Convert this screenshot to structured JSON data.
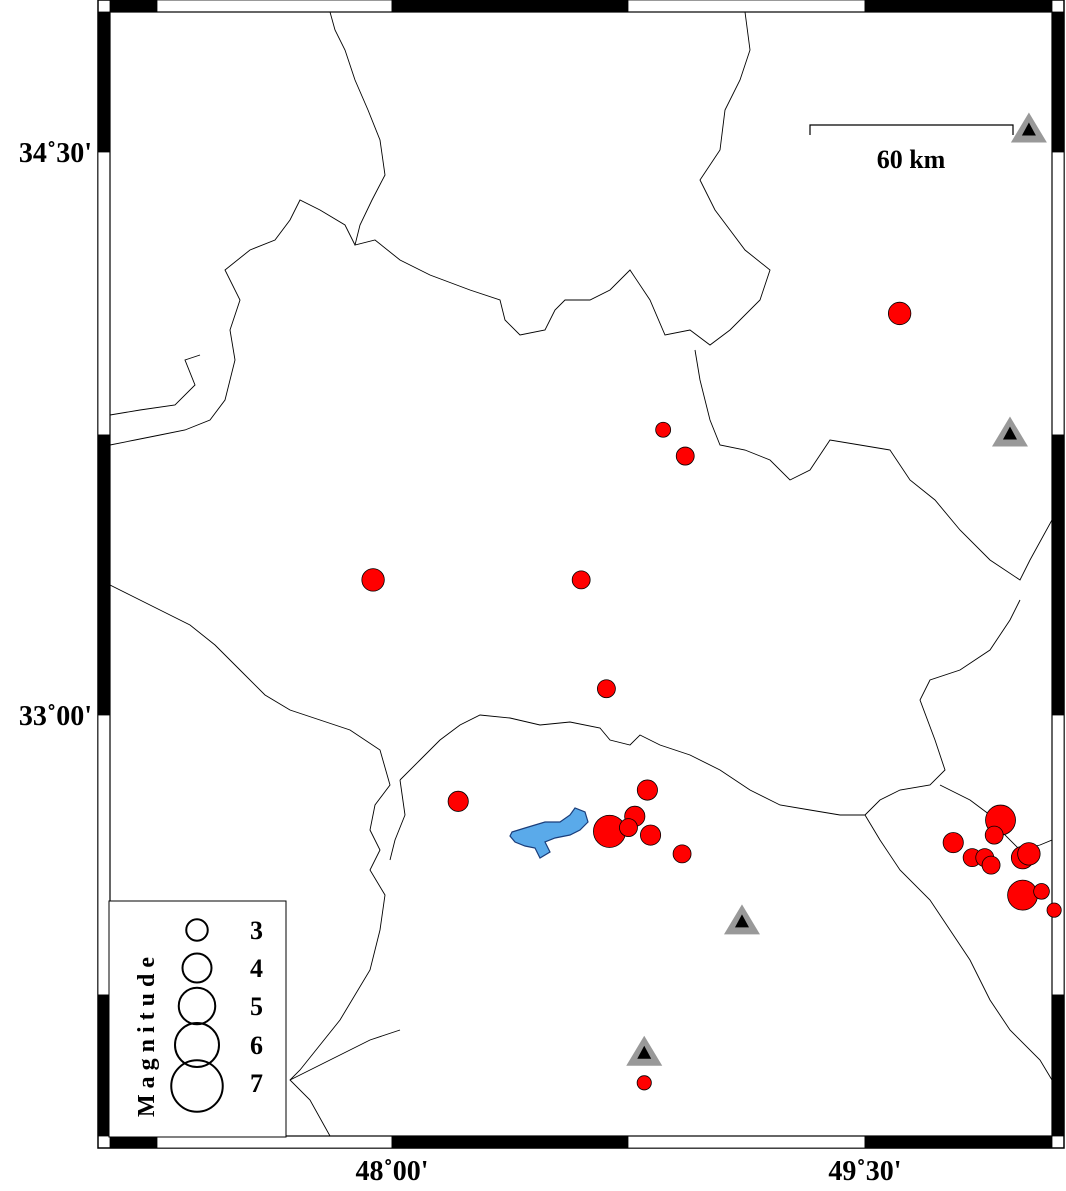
{
  "map": {
    "region": {
      "lon_min": 47.25,
      "lon_max": 50.0,
      "lat_min": 32.95,
      "lat_max": 34.85
    },
    "x_ticks": [
      {
        "lon": 48.0,
        "label": "48˚00'"
      },
      {
        "lon": 49.5,
        "label": "49˚30'"
      }
    ],
    "y_ticks": [
      {
        "lat": 34.5,
        "label": "34˚30'"
      },
      {
        "lat": 33.0,
        "label": "33˚00'"
      }
    ],
    "scale_bar": {
      "label": "60 km"
    },
    "colors": {
      "event": "#ff0000",
      "station": "#999999",
      "station_inner": "#000000",
      "lake": "#5aaaea",
      "border": "#000000"
    },
    "events": [
      {
        "lon": 49.61,
        "lat": 34.07,
        "mag": 3.0
      },
      {
        "lon": 48.86,
        "lat": 33.76,
        "mag": 2.0
      },
      {
        "lon": 48.93,
        "lat": 33.69,
        "mag": 2.4
      },
      {
        "lon": 47.94,
        "lat": 33.36,
        "mag": 3.0
      },
      {
        "lon": 48.6,
        "lat": 33.36,
        "mag": 2.4
      },
      {
        "lon": 48.68,
        "lat": 33.07,
        "mag": 2.4
      },
      {
        "lon": 48.21,
        "lat": 32.77,
        "mag": 2.7
      },
      {
        "lon": 48.81,
        "lat": 32.8,
        "mag": 2.7
      },
      {
        "lon": 48.77,
        "lat": 32.73,
        "mag": 2.7
      },
      {
        "lon": 48.69,
        "lat": 32.69,
        "mag": 4.3
      },
      {
        "lon": 48.75,
        "lat": 32.7,
        "mag": 2.4
      },
      {
        "lon": 48.82,
        "lat": 32.68,
        "mag": 2.7
      },
      {
        "lon": 48.92,
        "lat": 32.63,
        "mag": 2.4
      },
      {
        "lon": 49.78,
        "lat": 32.66,
        "mag": 2.7
      },
      {
        "lon": 49.93,
        "lat": 32.72,
        "mag": 4.0
      },
      {
        "lon": 49.91,
        "lat": 32.68,
        "mag": 2.4
      },
      {
        "lon": 49.84,
        "lat": 32.62,
        "mag": 2.4
      },
      {
        "lon": 49.88,
        "lat": 32.62,
        "mag": 2.4
      },
      {
        "lon": 49.9,
        "lat": 32.6,
        "mag": 2.4
      },
      {
        "lon": 50.0,
        "lat": 32.62,
        "mag": 3.0
      },
      {
        "lon": 50.02,
        "lat": 32.63,
        "mag": 3.0
      },
      {
        "lon": 50.0,
        "lat": 32.52,
        "mag": 4.0
      },
      {
        "lon": 50.06,
        "lat": 32.53,
        "mag": 2.1
      },
      {
        "lon": 50.1,
        "lat": 32.48,
        "mag": 1.9
      },
      {
        "lon": 48.8,
        "lat": 32.02,
        "mag": 1.9
      }
    ],
    "stations": [
      {
        "lon": 50.02,
        "lat": 34.56
      },
      {
        "lon": 49.96,
        "lat": 33.75
      },
      {
        "lon": 49.11,
        "lat": 32.45
      },
      {
        "lon": 48.8,
        "lat": 32.1
      }
    ]
  },
  "legend": {
    "title": "Magnitude",
    "entries": [
      {
        "mag": 3,
        "label": "3"
      },
      {
        "mag": 4,
        "label": "4"
      },
      {
        "mag": 5,
        "label": "5"
      },
      {
        "mag": 6,
        "label": "6"
      },
      {
        "mag": 7,
        "label": "7"
      }
    ]
  }
}
